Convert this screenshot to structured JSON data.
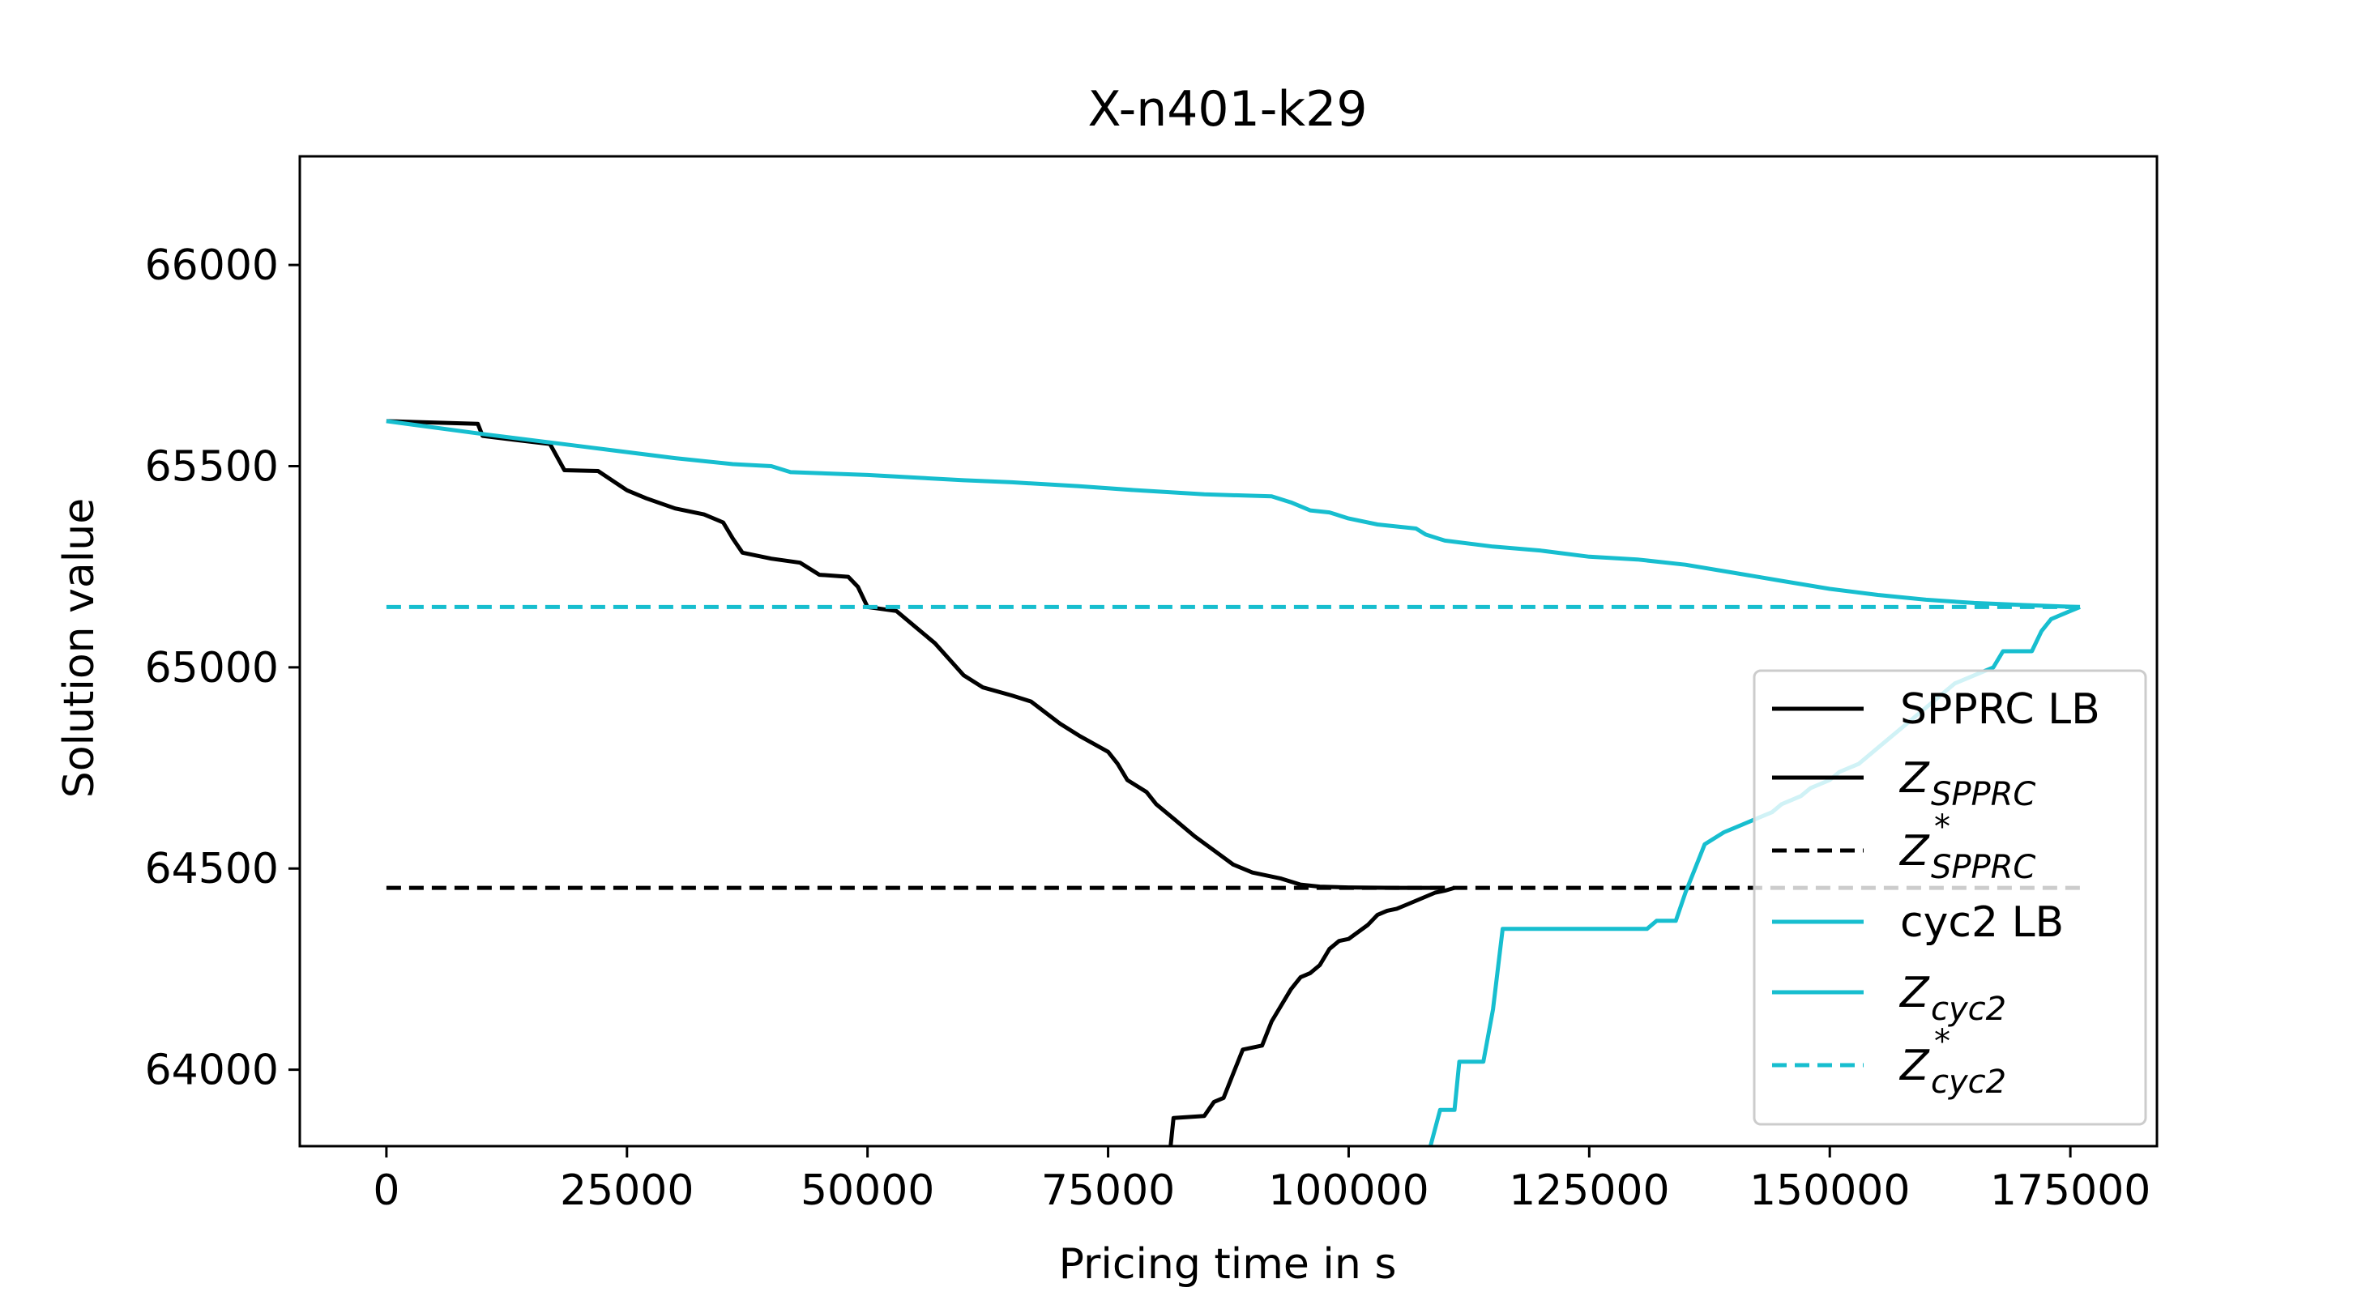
{
  "colors": {
    "black": "#000000",
    "cyan": "#17becf"
  },
  "chart_data": {
    "type": "line",
    "title": "X-n401-k29",
    "xlabel": "Pricing time in s",
    "ylabel": "Solution value",
    "xlim": [
      -9000,
      184000
    ],
    "ylim": [
      63810,
      66270
    ],
    "xticks": [
      0,
      25000,
      50000,
      75000,
      100000,
      125000,
      150000,
      175000
    ],
    "xtick_labels": [
      "0",
      "25000",
      "50000",
      "75000",
      "100000",
      "125000",
      "150000",
      "175000"
    ],
    "yticks": [
      64000,
      64500,
      65000,
      65500,
      66000
    ],
    "ytick_labels": [
      "64000",
      "64500",
      "65000",
      "65500",
      "66000"
    ],
    "legend_position": "lower-right",
    "series": [
      {
        "name": "SPPRC LB",
        "color": "#000000",
        "style": "solid",
        "x": [
          0,
          9500,
          10000,
          17000,
          18500,
          22000,
          25000,
          27000,
          30000,
          33000,
          35000,
          36000,
          37000,
          40000,
          43000,
          45000,
          48000,
          49000,
          50000,
          53000,
          55000,
          57000,
          60000,
          62000,
          65000,
          67000,
          70000,
          72000,
          75000,
          76000,
          77000,
          79000,
          80000,
          82000,
          84000,
          86000,
          88000,
          90000,
          93000,
          95000,
          97000,
          100000,
          105000,
          110000
        ],
        "y": [
          65612,
          65605,
          65575,
          65555,
          65490,
          65488,
          65440,
          65420,
          65395,
          65380,
          65360,
          65320,
          65285,
          65270,
          65260,
          65230,
          65225,
          65200,
          65150,
          65140,
          65100,
          65060,
          64980,
          64950,
          64930,
          64915,
          64860,
          64830,
          64790,
          64760,
          64720,
          64690,
          64660,
          64620,
          64580,
          64545,
          64510,
          64490,
          64475,
          64460,
          64455,
          64453,
          64452,
          64452
        ]
      },
      {
        "name": "Z_SPPRC",
        "color": "#000000",
        "style": "solid",
        "x": [
          81500,
          81800,
          85000,
          86000,
          87000,
          88000,
          89000,
          91000,
          92000,
          93000,
          94000,
          95000,
          96000,
          97000,
          98000,
          99000,
          100000,
          102000,
          103000,
          104000,
          105000,
          106000,
          107000,
          108000,
          109000,
          110000,
          111000
        ],
        "y": [
          63810,
          63880,
          63885,
          63920,
          63930,
          63990,
          64050,
          64060,
          64120,
          64160,
          64200,
          64230,
          64240,
          64260,
          64300,
          64320,
          64325,
          64360,
          64385,
          64395,
          64400,
          64410,
          64420,
          64430,
          64440,
          64445,
          64452
        ]
      },
      {
        "name": "Z*_SPPRC",
        "color": "#000000",
        "style": "dashed",
        "x": [
          0,
          176000
        ],
        "y": [
          64452,
          64452
        ]
      },
      {
        "name": "cyc2 LB",
        "color": "#17becf",
        "style": "solid",
        "x": [
          0,
          10000,
          20000,
          30000,
          36000,
          40000,
          42000,
          50000,
          60000,
          65000,
          72000,
          78000,
          85000,
          92000,
          94000,
          96000,
          98000,
          100000,
          103000,
          107000,
          108000,
          110000,
          115000,
          120000,
          125000,
          130000,
          135000,
          140000,
          145000,
          150000,
          155000,
          160000,
          165000,
          170000,
          176000
        ],
        "y": [
          65612,
          65580,
          65550,
          65520,
          65505,
          65500,
          65485,
          65478,
          65465,
          65460,
          65450,
          65440,
          65430,
          65425,
          65410,
          65390,
          65385,
          65370,
          65355,
          65345,
          65330,
          65315,
          65300,
          65290,
          65275,
          65268,
          65255,
          65235,
          65215,
          65195,
          65180,
          65168,
          65160,
          65155,
          65150
        ]
      },
      {
        "name": "Z_cyc2",
        "color": "#17becf",
        "style": "solid",
        "x": [
          108500,
          109500,
          110500,
          111000,
          111500,
          113000,
          114000,
          115000,
          116000,
          117000,
          131000,
          132000,
          133000,
          134000,
          135000,
          136000,
          137000,
          139000,
          140000,
          142000,
          144000,
          145000,
          147000,
          148000,
          150000,
          151000,
          153000,
          154000,
          155000,
          157000,
          159000,
          161000,
          163000,
          165000,
          167000,
          168000,
          169000,
          170000,
          171000,
          172000,
          173000,
          174000,
          175000,
          176000
        ],
        "y": [
          63810,
          63900,
          63900,
          63900,
          64020,
          64020,
          64020,
          64150,
          64350,
          64350,
          64350,
          64370,
          64370,
          64370,
          64440,
          64500,
          64560,
          64590,
          64600,
          64620,
          64640,
          64660,
          64680,
          64700,
          64720,
          64740,
          64760,
          64780,
          64800,
          64840,
          64880,
          64920,
          64960,
          64980,
          65000,
          65040,
          65040,
          65040,
          65040,
          65090,
          65120,
          65130,
          65140,
          65150
        ]
      },
      {
        "name": "Z*_cyc2",
        "color": "#17becf",
        "style": "dashed",
        "x": [
          0,
          176000
        ],
        "y": [
          65150,
          65150
        ]
      }
    ],
    "legend": [
      {
        "main": "SPPRC LB",
        "sub": "",
        "sup": "",
        "color": "#000000",
        "style": "solid"
      },
      {
        "main": "Z",
        "sub": "SPPRC",
        "sup": "",
        "color": "#000000",
        "style": "solid"
      },
      {
        "main": "Z",
        "sub": "SPPRC",
        "sup": "*",
        "color": "#000000",
        "style": "dashed"
      },
      {
        "main": "cyc2 LB",
        "sub": "",
        "sup": "",
        "color": "#17becf",
        "style": "solid"
      },
      {
        "main": "Z",
        "sub": "cyc2",
        "sup": "",
        "color": "#17becf",
        "style": "solid"
      },
      {
        "main": "Z",
        "sub": "cyc2",
        "sup": "*",
        "color": "#17becf",
        "style": "dashed"
      }
    ]
  }
}
